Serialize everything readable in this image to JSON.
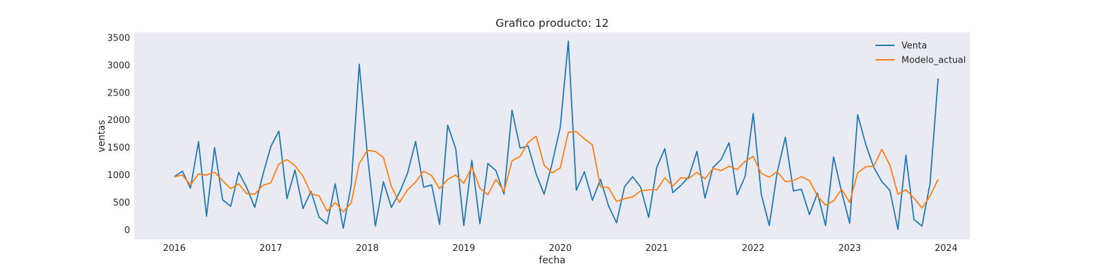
{
  "chart_data": {
    "type": "line",
    "title": "Grafico producto: 12",
    "xlabel": "fecha",
    "ylabel": "ventas",
    "x_start": "2016-01",
    "x_end": "2023-12",
    "x_frequency": "monthly",
    "xlim": [
      "2015-08",
      "2024-04"
    ],
    "ylim": [
      -170,
      3600
    ],
    "xticks": [
      "2016",
      "2017",
      "2018",
      "2019",
      "2020",
      "2021",
      "2022",
      "2023",
      "2024"
    ],
    "yticks": [
      0,
      500,
      1000,
      1500,
      2000,
      2500,
      3000,
      3500
    ],
    "grid": false,
    "legend_position": "top-right",
    "background": "#eaeaf2",
    "series": [
      {
        "name": "Venta",
        "color": "#1f77b4",
        "values": [
          970,
          1070,
          760,
          1610,
          250,
          1500,
          550,
          430,
          1050,
          770,
          410,
          1000,
          1520,
          1800,
          570,
          1090,
          390,
          700,
          230,
          110,
          840,
          30,
          820,
          3020,
          1380,
          70,
          880,
          410,
          680,
          1030,
          1610,
          780,
          820,
          100,
          1910,
          1480,
          80,
          1270,
          110,
          1210,
          1080,
          650,
          2180,
          1490,
          1530,
          1020,
          650,
          1220,
          1870,
          3440,
          720,
          1060,
          540,
          920,
          440,
          130,
          790,
          970,
          780,
          230,
          1140,
          1480,
          680,
          810,
          970,
          1430,
          580,
          1140,
          1280,
          1590,
          640,
          980,
          2120,
          650,
          80,
          1060,
          1690,
          710,
          740,
          280,
          670,
          80,
          1330,
          690,
          120,
          2100,
          1560,
          1140,
          880,
          720,
          10,
          1360,
          190,
          70,
          850,
          2760
        ]
      },
      {
        "name": "Modelo_actual",
        "color": "#ff7f0e",
        "values": [
          970,
          1000,
          820,
          1020,
          1000,
          1050,
          900,
          750,
          840,
          660,
          650,
          810,
          860,
          1200,
          1280,
          1170,
          980,
          660,
          620,
          340,
          500,
          330,
          490,
          1210,
          1450,
          1430,
          1320,
          790,
          500,
          730,
          870,
          1070,
          990,
          750,
          920,
          1000,
          850,
          1150,
          760,
          640,
          920,
          700,
          1260,
          1340,
          1590,
          1710,
          1180,
          1040,
          1130,
          1780,
          1790,
          1660,
          1550,
          790,
          770,
          520,
          570,
          600,
          710,
          730,
          730,
          950,
          800,
          950,
          940,
          1050,
          930,
          1120,
          1080,
          1160,
          1100,
          1250,
          1340,
          1030,
          960,
          1060,
          880,
          900,
          970,
          900,
          620,
          450,
          530,
          740,
          500,
          1040,
          1150,
          1160,
          1470,
          1180,
          650,
          730,
          580,
          400,
          620,
          920
        ]
      }
    ]
  }
}
